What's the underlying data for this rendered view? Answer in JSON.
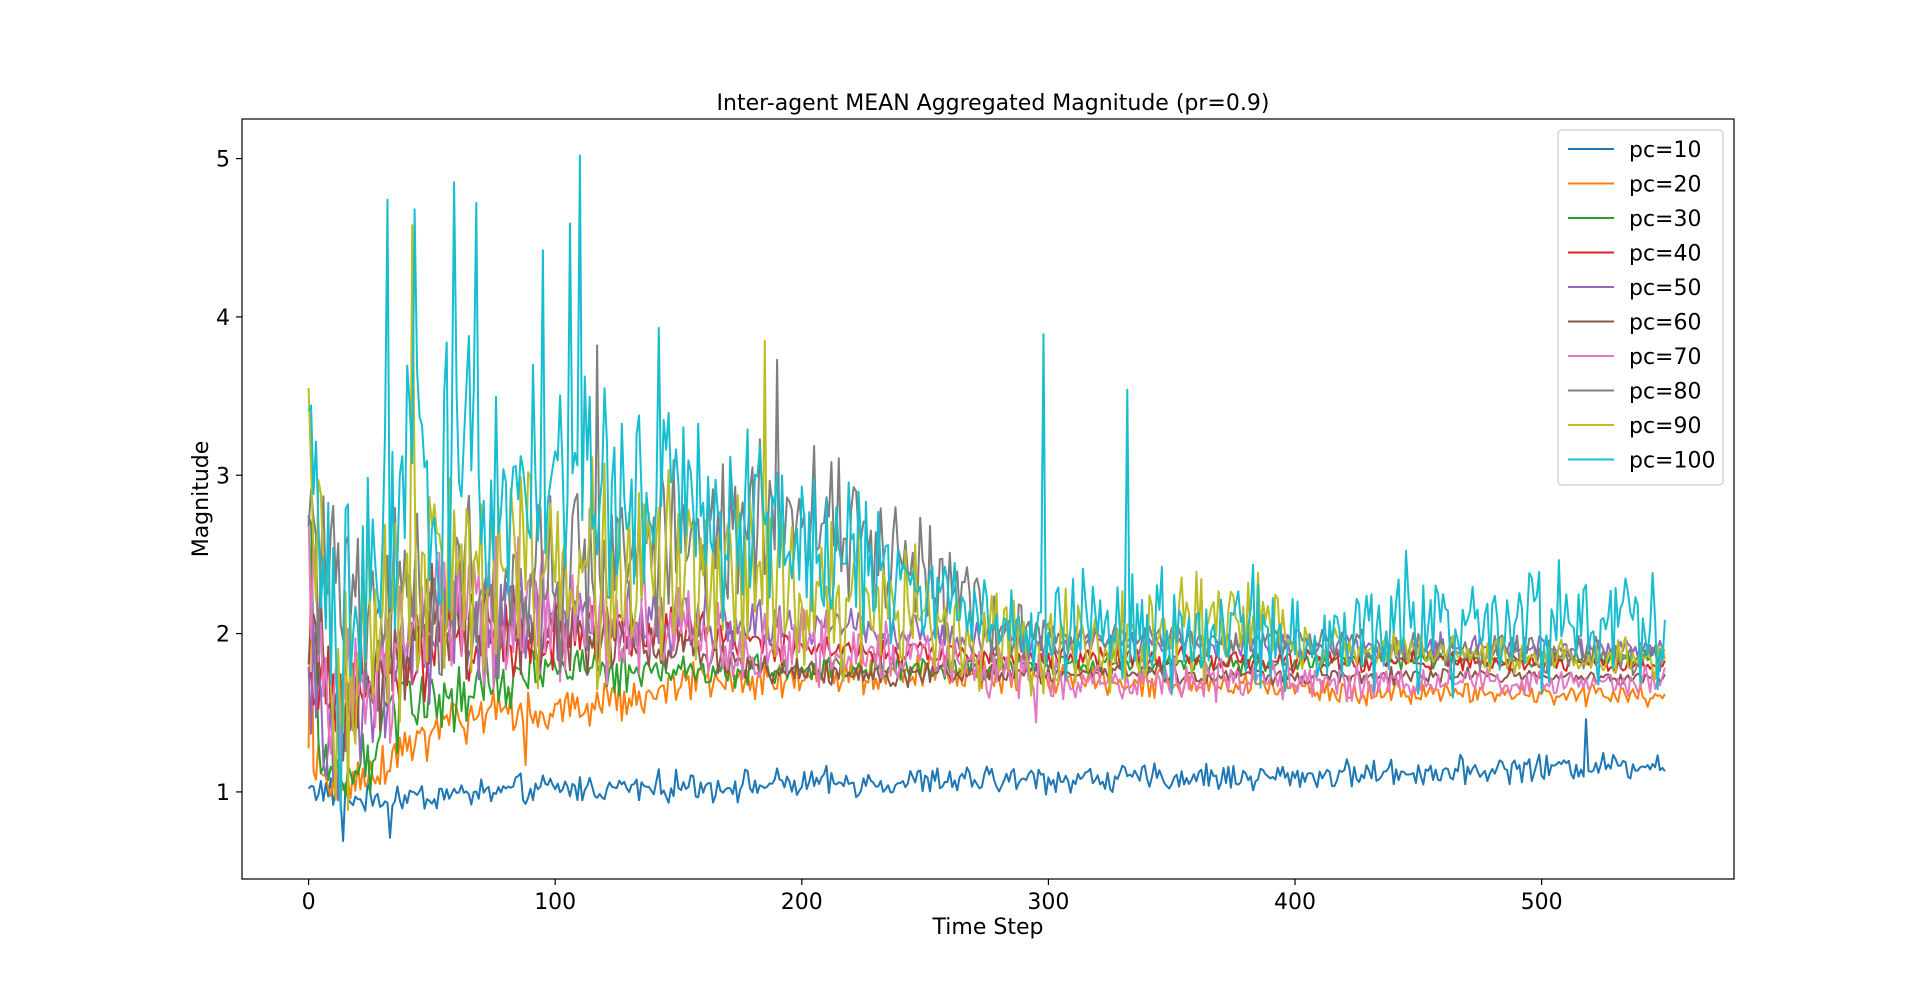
{
  "chart_data": {
    "type": "line",
    "title": "Inter-agent MEAN Aggregated Magnitude (pr=0.9)",
    "xlabel": "Time Step",
    "ylabel": "Magnitude",
    "xlim": [
      -27,
      578
    ],
    "ylim": [
      0.45,
      5.25
    ],
    "x_ticks": [
      0,
      100,
      200,
      300,
      400,
      500
    ],
    "y_ticks": [
      1,
      2,
      3,
      4,
      5
    ],
    "x_tick_labels": [
      "0",
      "100",
      "200",
      "300",
      "400",
      "500"
    ],
    "y_tick_labels": [
      "1",
      "2",
      "3",
      "4",
      "5"
    ],
    "grid": false,
    "legend_position": "upper right",
    "n_steps": 551,
    "series": [
      {
        "name": "pc=10",
        "color": "#1f77b4",
        "profile": [
          [
            0,
            1.03
          ],
          [
            20,
            0.95
          ],
          [
            100,
            1.02
          ],
          [
            200,
            1.05
          ],
          [
            300,
            1.08
          ],
          [
            400,
            1.1
          ],
          [
            550,
            1.18
          ]
        ],
        "noise": [
          [
            0,
            0.12
          ],
          [
            550,
            0.1
          ]
        ],
        "spikes": [
          [
            14,
            0.69
          ],
          [
            33,
            0.71
          ],
          [
            518,
            1.46
          ]
        ]
      },
      {
        "name": "pc=20",
        "color": "#ff7f0e",
        "profile": [
          [
            0,
            1.2
          ],
          [
            10,
            1.0
          ],
          [
            20,
            1.1
          ],
          [
            60,
            1.45
          ],
          [
            120,
            1.55
          ],
          [
            160,
            1.7
          ],
          [
            250,
            1.75
          ],
          [
            400,
            1.65
          ],
          [
            550,
            1.6
          ]
        ],
        "noise": [
          [
            0,
            0.2
          ],
          [
            150,
            0.15
          ],
          [
            550,
            0.08
          ]
        ],
        "spikes": [
          [
            1,
            2.55
          ],
          [
            88,
            1.17
          ]
        ]
      },
      {
        "name": "pc=30",
        "color": "#2ca02c",
        "profile": [
          [
            0,
            2.8
          ],
          [
            5,
            1.2
          ],
          [
            15,
            1.05
          ],
          [
            40,
            1.55
          ],
          [
            100,
            1.75
          ],
          [
            200,
            1.78
          ],
          [
            300,
            1.8
          ],
          [
            550,
            1.85
          ]
        ],
        "noise": [
          [
            0,
            0.35
          ],
          [
            200,
            0.1
          ],
          [
            550,
            0.06
          ]
        ],
        "spikes": [
          [
            15,
            0.98
          ]
        ]
      },
      {
        "name": "pc=40",
        "color": "#d62728",
        "profile": [
          [
            0,
            1.6
          ],
          [
            20,
            1.65
          ],
          [
            50,
            1.9
          ],
          [
            100,
            2.0
          ],
          [
            150,
            2.05
          ],
          [
            200,
            1.9
          ],
          [
            300,
            1.85
          ],
          [
            550,
            1.8
          ]
        ],
        "noise": [
          [
            0,
            0.4
          ],
          [
            200,
            0.12
          ],
          [
            550,
            0.06
          ]
        ],
        "spikes": []
      },
      {
        "name": "pc=50",
        "color": "#9467bd",
        "profile": [
          [
            0,
            1.95
          ],
          [
            10,
            1.3
          ],
          [
            40,
            2.0
          ],
          [
            100,
            2.1
          ],
          [
            200,
            2.05
          ],
          [
            300,
            1.95
          ],
          [
            550,
            1.9
          ]
        ],
        "noise": [
          [
            0,
            0.6
          ],
          [
            200,
            0.15
          ],
          [
            550,
            0.08
          ]
        ],
        "spikes": []
      },
      {
        "name": "pc=60",
        "color": "#8c564b",
        "profile": [
          [
            0,
            2.25
          ],
          [
            10,
            1.5
          ],
          [
            50,
            2.1
          ],
          [
            150,
            1.9
          ],
          [
            200,
            1.75
          ],
          [
            300,
            1.75
          ],
          [
            550,
            1.72
          ]
        ],
        "noise": [
          [
            0,
            0.55
          ],
          [
            200,
            0.1
          ],
          [
            550,
            0.05
          ]
        ],
        "spikes": []
      },
      {
        "name": "pc=70",
        "color": "#e377c2",
        "profile": [
          [
            0,
            2.3
          ],
          [
            10,
            1.4
          ],
          [
            50,
            2.2
          ],
          [
            150,
            2.0
          ],
          [
            250,
            1.85
          ],
          [
            300,
            1.7
          ],
          [
            400,
            1.7
          ],
          [
            550,
            1.7
          ]
        ],
        "noise": [
          [
            0,
            0.7
          ],
          [
            250,
            0.2
          ],
          [
            550,
            0.1
          ]
        ],
        "spikes": [
          [
            295,
            1.44
          ]
        ]
      },
      {
        "name": "pc=80",
        "color": "#7f7f7f",
        "profile": [
          [
            0,
            2.6
          ],
          [
            20,
            2.2
          ],
          [
            100,
            2.3
          ],
          [
            190,
            2.8
          ],
          [
            250,
            2.4
          ],
          [
            280,
            2.0
          ],
          [
            550,
            1.85
          ]
        ],
        "noise": [
          [
            0,
            0.8
          ],
          [
            270,
            0.45
          ],
          [
            300,
            0.1
          ],
          [
            550,
            0.15
          ]
        ],
        "spikes": [
          [
            117,
            3.82
          ],
          [
            190,
            3.73
          ]
        ]
      },
      {
        "name": "pc=90",
        "color": "#bcbd22",
        "profile": [
          [
            0,
            3.0
          ],
          [
            10,
            1.6
          ],
          [
            40,
            2.4
          ],
          [
            150,
            2.4
          ],
          [
            250,
            2.1
          ],
          [
            300,
            1.9
          ],
          [
            320,
            2.0
          ],
          [
            390,
            2.1
          ],
          [
            400,
            1.9
          ],
          [
            550,
            1.85
          ]
        ],
        "noise": [
          [
            0,
            1.0
          ],
          [
            250,
            0.5
          ],
          [
            320,
            0.45
          ],
          [
            390,
            0.4
          ],
          [
            400,
            0.15
          ],
          [
            550,
            0.15
          ]
        ],
        "spikes": [
          [
            42,
            4.58
          ],
          [
            185,
            3.85
          ]
        ]
      },
      {
        "name": "pc=100",
        "color": "#17becf",
        "profile": [
          [
            0,
            3.4
          ],
          [
            5,
            2.3
          ],
          [
            12,
            1.7
          ],
          [
            30,
            2.8
          ],
          [
            100,
            3.0
          ],
          [
            200,
            2.6
          ],
          [
            280,
            2.1
          ],
          [
            300,
            2.0
          ],
          [
            320,
            2.0
          ],
          [
            550,
            2.05
          ]
        ],
        "noise": [
          [
            0,
            1.2
          ],
          [
            150,
            0.8
          ],
          [
            280,
            0.3
          ],
          [
            320,
            0.5
          ],
          [
            550,
            0.5
          ]
        ],
        "spikes": [
          [
            1,
            3.44
          ],
          [
            32,
            4.74
          ],
          [
            43,
            4.68
          ],
          [
            59,
            4.85
          ],
          [
            68,
            4.72
          ],
          [
            95,
            4.42
          ],
          [
            106,
            4.59
          ],
          [
            110,
            5.02
          ],
          [
            142,
            3.93
          ],
          [
            298,
            3.89
          ],
          [
            332,
            3.54
          ]
        ]
      }
    ]
  }
}
